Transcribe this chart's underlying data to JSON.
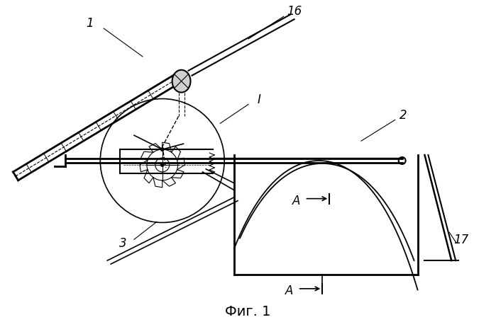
{
  "bg_color": "#ffffff",
  "line_color": "#000000",
  "fig_caption": "Фиг. 1",
  "labels": {
    "1_top": "1",
    "16": "16",
    "I": "I",
    "2": "2",
    "3": "3",
    "17": "17",
    "A1": "A",
    "A2": "A"
  },
  "figsize": [
    6.99,
    4.56
  ],
  "dpi": 100
}
